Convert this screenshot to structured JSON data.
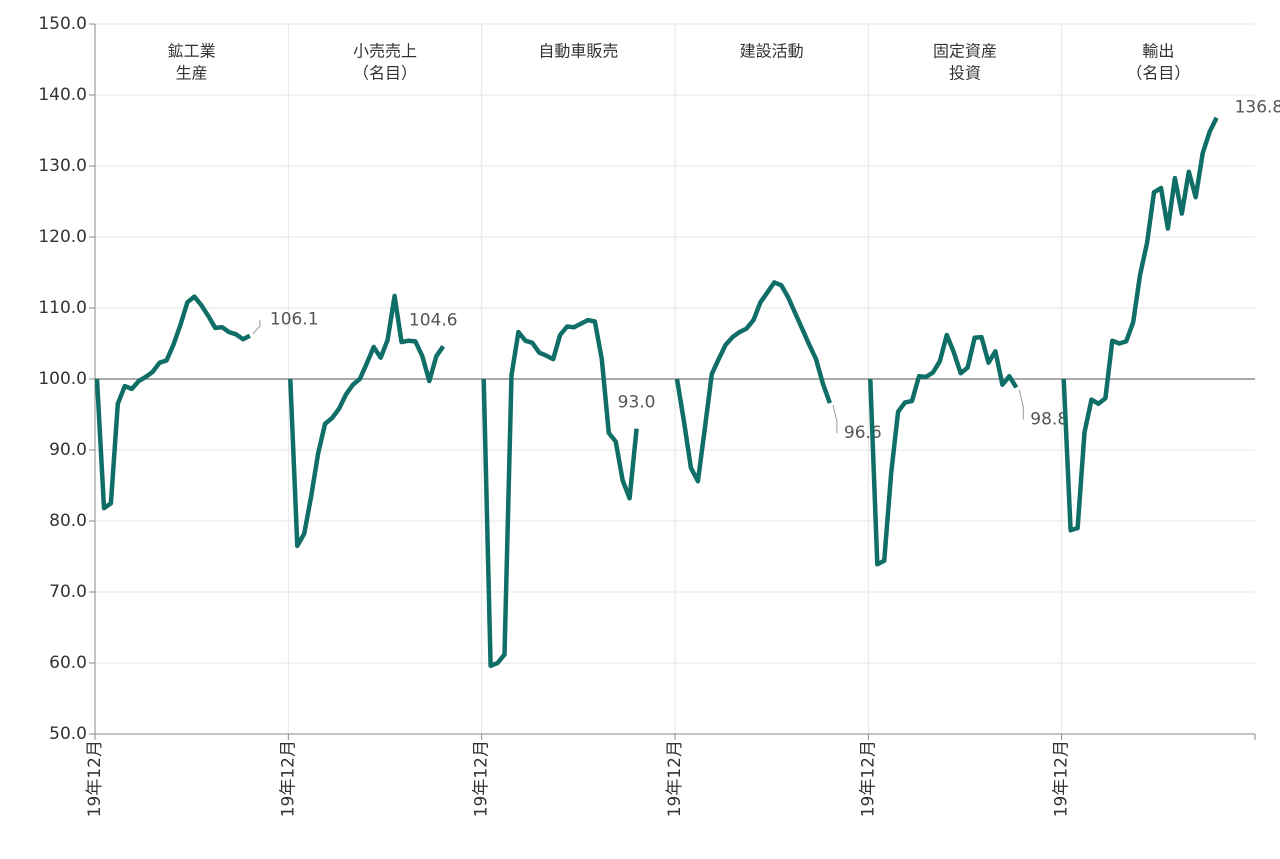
{
  "chart_data": {
    "type": "line",
    "color": "#0f6e66",
    "ylim": [
      50,
      150
    ],
    "yticks": [
      {
        "value": 50,
        "label": "50.0"
      },
      {
        "value": 60,
        "label": "60.0"
      },
      {
        "value": 70,
        "label": "70.0"
      },
      {
        "value": 80,
        "label": "80.0"
      },
      {
        "value": 90,
        "label": "90.0"
      },
      {
        "value": 100,
        "label": "100.0"
      },
      {
        "value": 110,
        "label": "110.0"
      },
      {
        "value": 120,
        "label": "120.0"
      },
      {
        "value": 130,
        "label": "130.0"
      },
      {
        "value": 140,
        "label": "140.0"
      },
      {
        "value": 150,
        "label": "150.0"
      }
    ],
    "reference_line": 100,
    "grid": true,
    "panels": [
      {
        "title": [
          "鉱工業",
          "生産"
        ],
        "categories": [
          "19年12月",
          null,
          null,
          null,
          null,
          null,
          null,
          null,
          null,
          null,
          null,
          null,
          null,
          null,
          null,
          null,
          null,
          null,
          null,
          null,
          null,
          null,
          null
        ],
        "values": [
          100,
          81.8,
          82.5,
          96.5,
          99,
          98.6,
          99.7,
          100.3,
          101,
          102.3,
          102.6,
          104.8,
          107.6,
          110.8,
          111.6,
          110.4,
          108.9,
          107.2,
          107.3,
          106.6,
          106.3,
          105.6,
          106.1
        ],
        "value_labels": [
          null,
          null,
          null,
          null,
          null,
          null,
          null,
          null,
          null,
          null,
          null,
          null,
          null,
          null,
          null,
          null,
          null,
          null,
          null,
          null,
          null,
          null,
          "106.1"
        ]
      },
      {
        "title": [
          "小売売上",
          "（名目）"
        ],
        "categories": [
          "19年12月",
          null,
          null,
          null,
          null,
          null,
          null,
          null,
          null,
          null,
          null,
          null,
          null,
          null,
          null,
          null,
          null,
          null,
          null,
          null,
          null,
          null,
          null
        ],
        "values": [
          100,
          76.5,
          78.2,
          83.5,
          89.5,
          93.7,
          94.5,
          95.8,
          97.8,
          99.2,
          100,
          102.2,
          104.5,
          103,
          105.5,
          111.7,
          105.2,
          105.4,
          105.3,
          103.2,
          99.7,
          103.2,
          104.6
        ],
        "value_labels": [
          null,
          null,
          null,
          null,
          null,
          null,
          null,
          null,
          null,
          null,
          null,
          null,
          null,
          null,
          null,
          null,
          null,
          null,
          null,
          null,
          null,
          null,
          "104.6"
        ]
      },
      {
        "title": [
          "自動車販売"
        ],
        "categories": [
          "19年12月",
          null,
          null,
          null,
          null,
          null,
          null,
          null,
          null,
          null,
          null,
          null,
          null,
          null,
          null,
          null,
          null,
          null,
          null,
          null,
          null,
          null,
          null
        ],
        "values": [
          100,
          59.6,
          60,
          61.2,
          100.5,
          106.6,
          105.4,
          105.1,
          103.7,
          103.3,
          102.8,
          106.2,
          107.4,
          107.3,
          107.8,
          108.3,
          108.1,
          102.8,
          92.4,
          91.2,
          85.7,
          83.2,
          93
        ],
        "value_labels": [
          null,
          null,
          null,
          null,
          null,
          null,
          null,
          null,
          null,
          null,
          null,
          null,
          null,
          null,
          null,
          null,
          null,
          null,
          null,
          null,
          null,
          null,
          "93.0"
        ]
      },
      {
        "title": [
          "建設活動"
        ],
        "categories": [
          "19年12月",
          null,
          null,
          null,
          null,
          null,
          null,
          null,
          null,
          null,
          null,
          null,
          null,
          null,
          null,
          null,
          null,
          null,
          null,
          null,
          null,
          null,
          null
        ],
        "values": [
          100,
          94,
          87.5,
          85.6,
          93,
          100.7,
          102.8,
          104.8,
          105.9,
          106.6,
          107.1,
          108.3,
          110.8,
          112.2,
          113.6,
          113.2,
          111.5,
          109.3,
          107.1,
          104.9,
          102.8,
          99.3,
          96.6
        ],
        "value_labels": [
          null,
          null,
          null,
          null,
          null,
          null,
          null,
          null,
          null,
          null,
          null,
          null,
          null,
          null,
          null,
          null,
          null,
          null,
          null,
          null,
          null,
          null,
          "96.6"
        ]
      },
      {
        "title": [
          "固定資産",
          "投資"
        ],
        "categories": [
          "19年12月",
          null,
          null,
          null,
          null,
          null,
          null,
          null,
          null,
          null,
          null,
          null,
          null,
          null,
          null,
          null,
          null,
          null,
          null,
          null,
          null,
          null
        ],
        "values": [
          100,
          73.9,
          74.4,
          86.8,
          95.4,
          96.7,
          96.9,
          100.4,
          100.3,
          100.9,
          102.5,
          106.2,
          103.8,
          100.8,
          101.6,
          105.8,
          105.9,
          102.3,
          103.9,
          99.2,
          100.4,
          98.8
        ],
        "value_labels": [
          null,
          null,
          null,
          null,
          null,
          null,
          null,
          null,
          null,
          null,
          null,
          null,
          null,
          null,
          null,
          null,
          null,
          null,
          null,
          null,
          null,
          "98.8"
        ]
      },
      {
        "title": [
          "輸出",
          "（名目）"
        ],
        "categories": [
          "19年12月",
          null,
          null,
          null,
          null,
          null,
          null,
          null,
          null,
          null,
          null,
          null,
          null,
          null,
          null,
          null,
          null,
          null,
          null,
          null,
          null,
          null,
          null
        ],
        "values": [
          100,
          78.7,
          79,
          92.5,
          97.1,
          96.5,
          97.3,
          105.4,
          105,
          105.3,
          108,
          114.7,
          119.2,
          126.3,
          126.9,
          121.2,
          128.3,
          123.3,
          129.2,
          125.6,
          131.8,
          134.8,
          136.8
        ],
        "value_labels": [
          null,
          null,
          null,
          null,
          null,
          null,
          null,
          null,
          null,
          null,
          null,
          null,
          null,
          null,
          null,
          null,
          null,
          null,
          null,
          null,
          null,
          null,
          "136.8"
        ]
      }
    ]
  }
}
